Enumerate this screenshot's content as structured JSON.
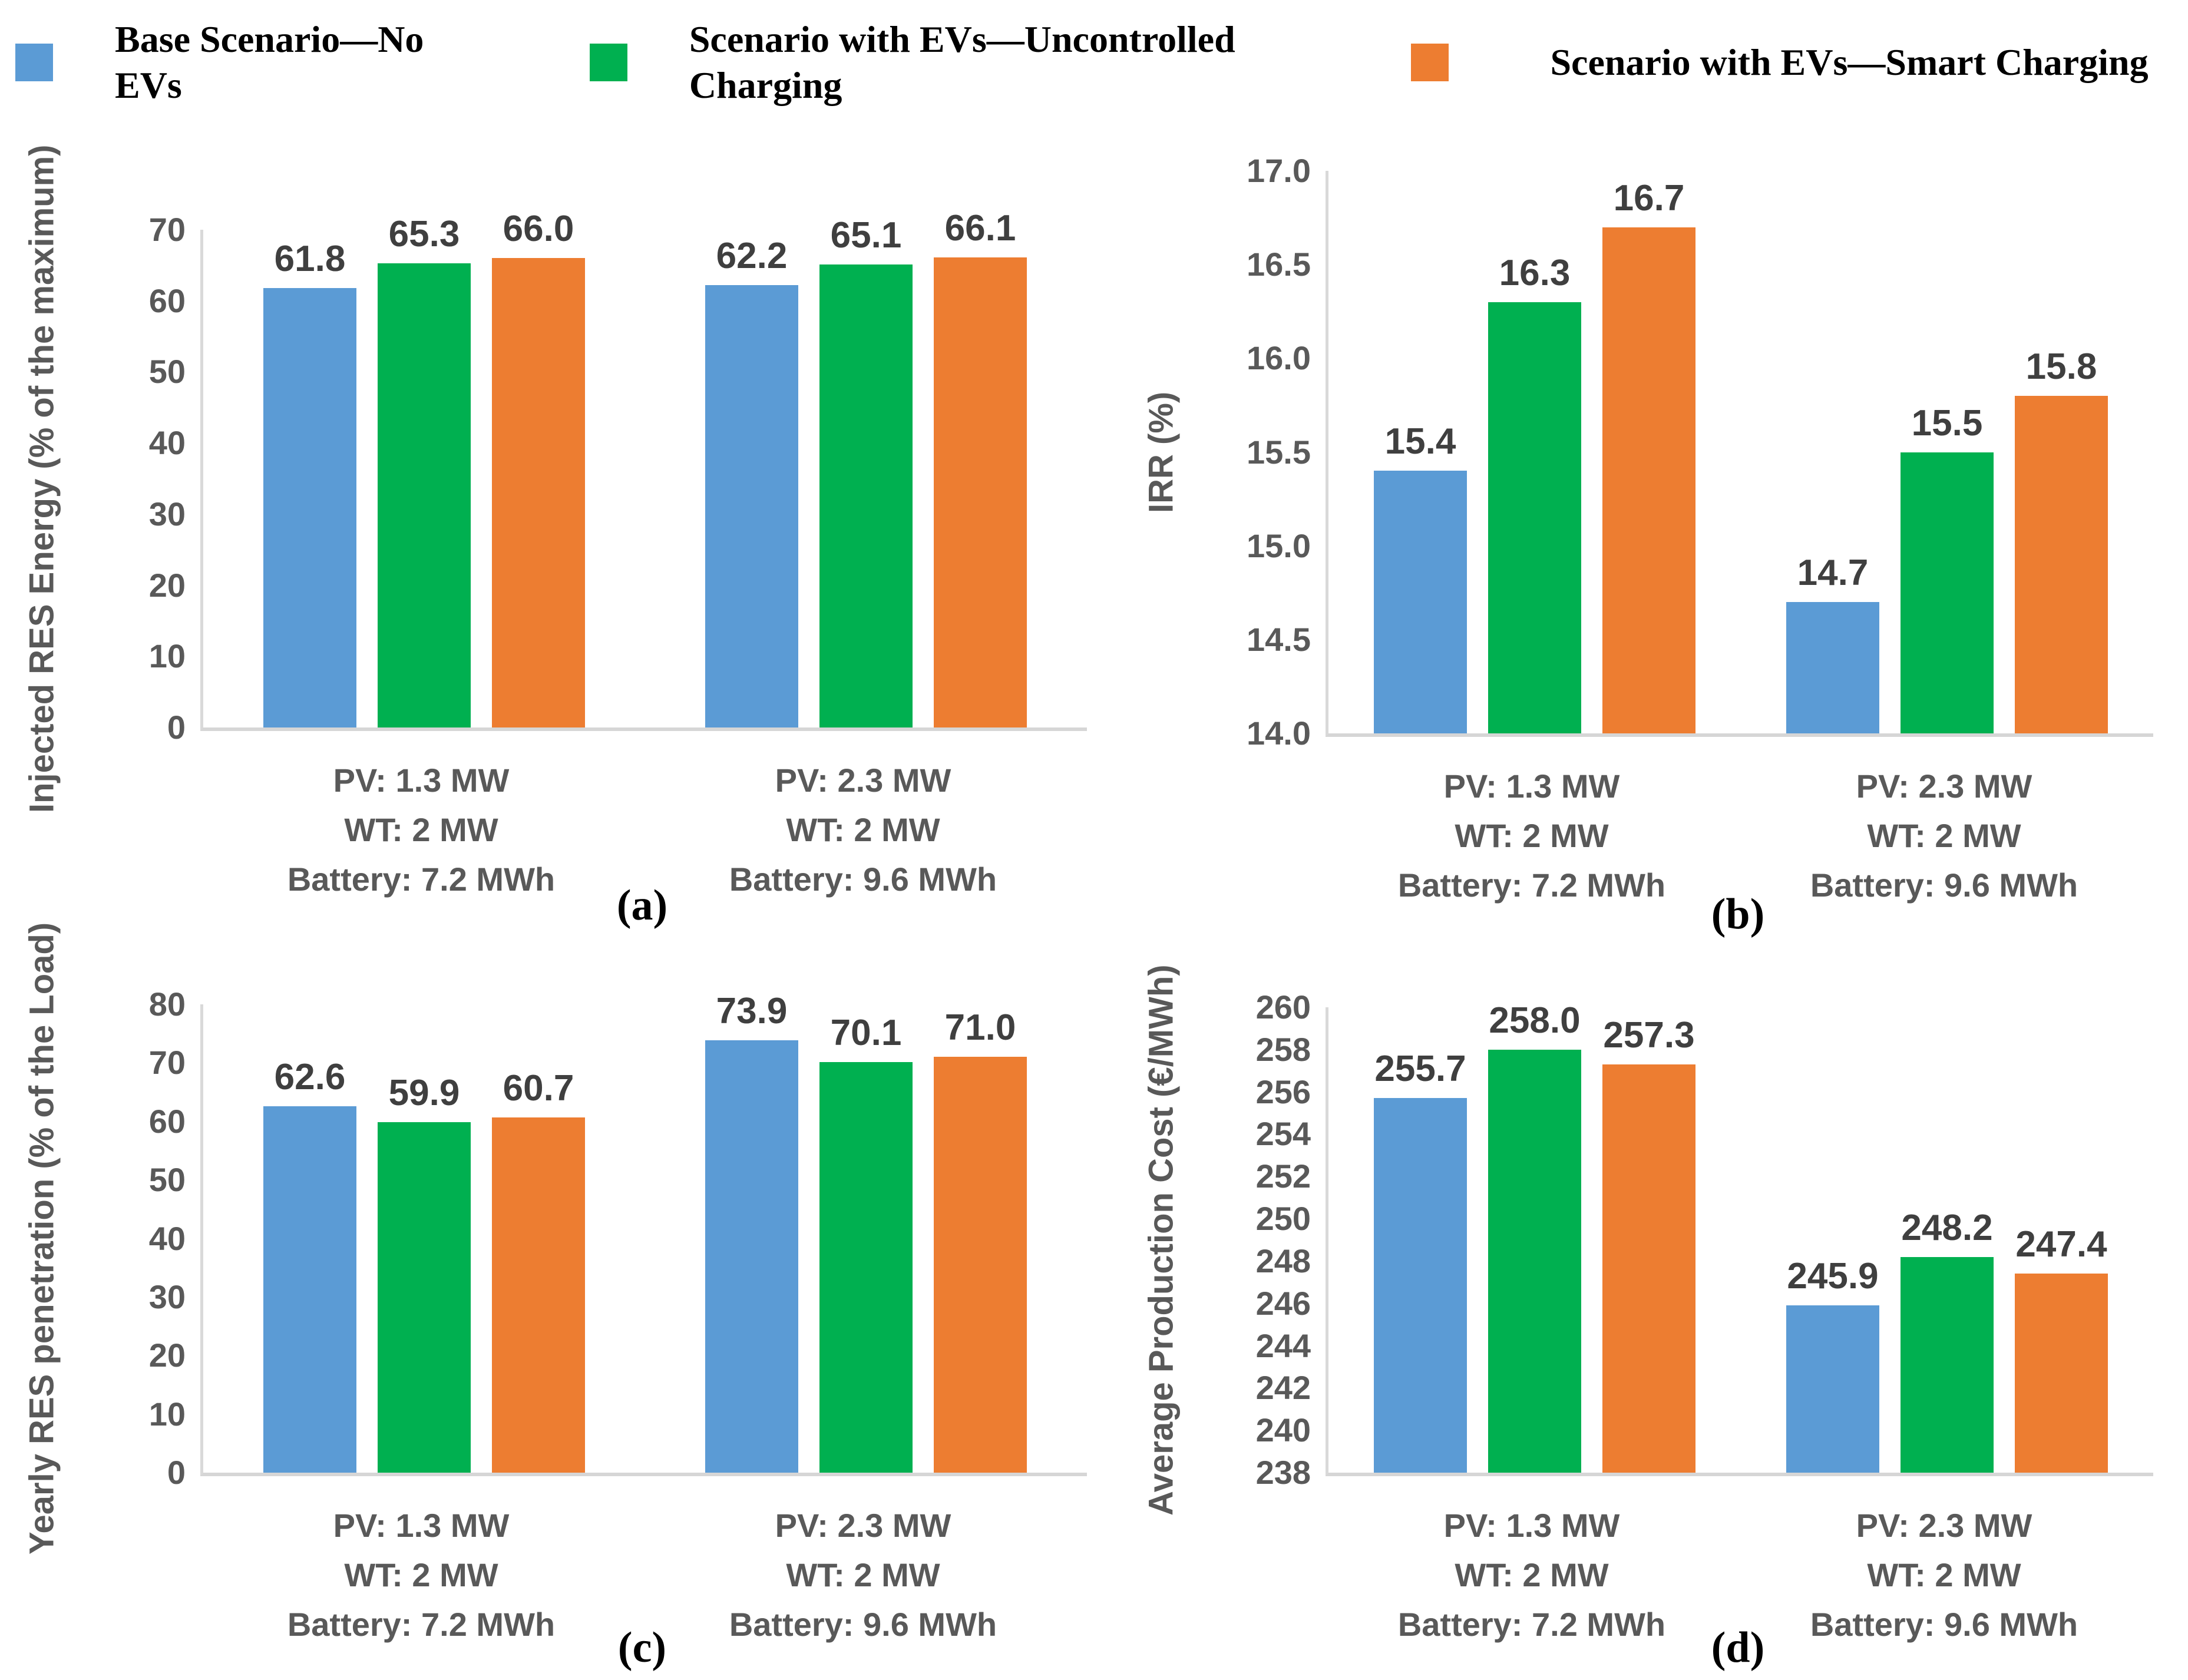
{
  "colors": {
    "series": [
      "#5B9BD5",
      "#00B050",
      "#ED7D31"
    ],
    "tick_text": "#595959",
    "value_text": "#3F3F3F",
    "axis_line": "#D9D9D9"
  },
  "legend": {
    "items": [
      {
        "label": "Base Scenario—No EVs",
        "color": "#5B9BD5"
      },
      {
        "label": "Scenario with EVs—Uncontrolled Charging",
        "color": "#00B050"
      },
      {
        "label": "Scenario with EVs—Smart Charging",
        "color": "#ED7D31"
      }
    ]
  },
  "chart_data": [
    {
      "type": "bar",
      "panel": "a",
      "caption": "(a)",
      "ylabel": "Injected RES Energy (% of the maximum)",
      "ylim": [
        0,
        70
      ],
      "ytick_step": 10,
      "ytick_decimals": 0,
      "value_decimals": 1,
      "grid": false,
      "categories": [
        [
          "PV: 1.3 MW",
          "WT: 2 MW",
          "Battery: 7.2 MWh"
        ],
        [
          "PV: 2.3 MW",
          "WT: 2 MW",
          "Battery: 9.6 MWh"
        ]
      ],
      "series": [
        {
          "name": "Base Scenario—No EVs",
          "values": [
            61.8,
            62.2
          ]
        },
        {
          "name": "Scenario with EVs—Uncontrolled Charging",
          "values": [
            65.3,
            65.1
          ]
        },
        {
          "name": "Scenario with EVs—Smart Charging",
          "values": [
            66.0,
            66.1
          ]
        }
      ]
    },
    {
      "type": "bar",
      "panel": "b",
      "caption": "(b)",
      "ylabel": "IRR (%)",
      "ylim": [
        14.0,
        17.0
      ],
      "ytick_step": 0.5,
      "ytick_decimals": 1,
      "value_decimals": 1,
      "grid": false,
      "categories": [
        [
          "PV: 1.3 MW",
          "WT: 2 MW",
          "Battery: 7.2 MWh"
        ],
        [
          "PV: 2.3 MW",
          "WT: 2 MW",
          "Battery: 9.6 MWh"
        ]
      ],
      "series": [
        {
          "name": "Base Scenario—No EVs",
          "values": [
            15.4,
            14.7
          ]
        },
        {
          "name": "Scenario with EVs—Uncontrolled Charging",
          "values": [
            16.3,
            15.5
          ]
        },
        {
          "name": "Scenario with EVs—Smart Charging",
          "values": [
            16.7,
            15.8
          ]
        }
      ]
    },
    {
      "type": "bar",
      "panel": "c",
      "caption": "(c)",
      "ylabel": "Yearly RES penetration (% of the Load)",
      "ylim": [
        0,
        80
      ],
      "ytick_step": 10,
      "ytick_decimals": 0,
      "value_decimals": 1,
      "grid": false,
      "categories": [
        [
          "PV: 1.3 MW",
          "WT: 2 MW",
          "Battery: 7.2 MWh"
        ],
        [
          "PV: 2.3 MW",
          "WT: 2 MW",
          "Battery: 9.6 MWh"
        ]
      ],
      "series": [
        {
          "name": "Base Scenario—No EVs",
          "values": [
            62.6,
            73.9
          ]
        },
        {
          "name": "Scenario with EVs—Uncontrolled Charging",
          "values": [
            59.9,
            70.1
          ]
        },
        {
          "name": "Scenario with EVs—Smart Charging",
          "values": [
            60.7,
            71.0
          ]
        }
      ]
    },
    {
      "type": "bar",
      "panel": "d",
      "caption": "(d)",
      "ylabel": "Average Production Cost (€/MWh)",
      "ylim": [
        238,
        260
      ],
      "ytick_step": 2,
      "ytick_decimals": 0,
      "value_decimals": 1,
      "grid": false,
      "categories": [
        [
          "PV: 1.3 MW",
          "WT: 2 MW",
          "Battery: 7.2 MWh"
        ],
        [
          "PV: 2.3 MW",
          "WT: 2 MW",
          "Battery: 9.6 MWh"
        ]
      ],
      "series": [
        {
          "name": "Base Scenario—No EVs",
          "values": [
            255.7,
            245.9
          ]
        },
        {
          "name": "Scenario with EVs—Uncontrolled Charging",
          "values": [
            258.0,
            248.2
          ]
        },
        {
          "name": "Scenario with EVs—Smart Charging",
          "values": [
            257.3,
            247.4
          ]
        }
      ]
    }
  ]
}
